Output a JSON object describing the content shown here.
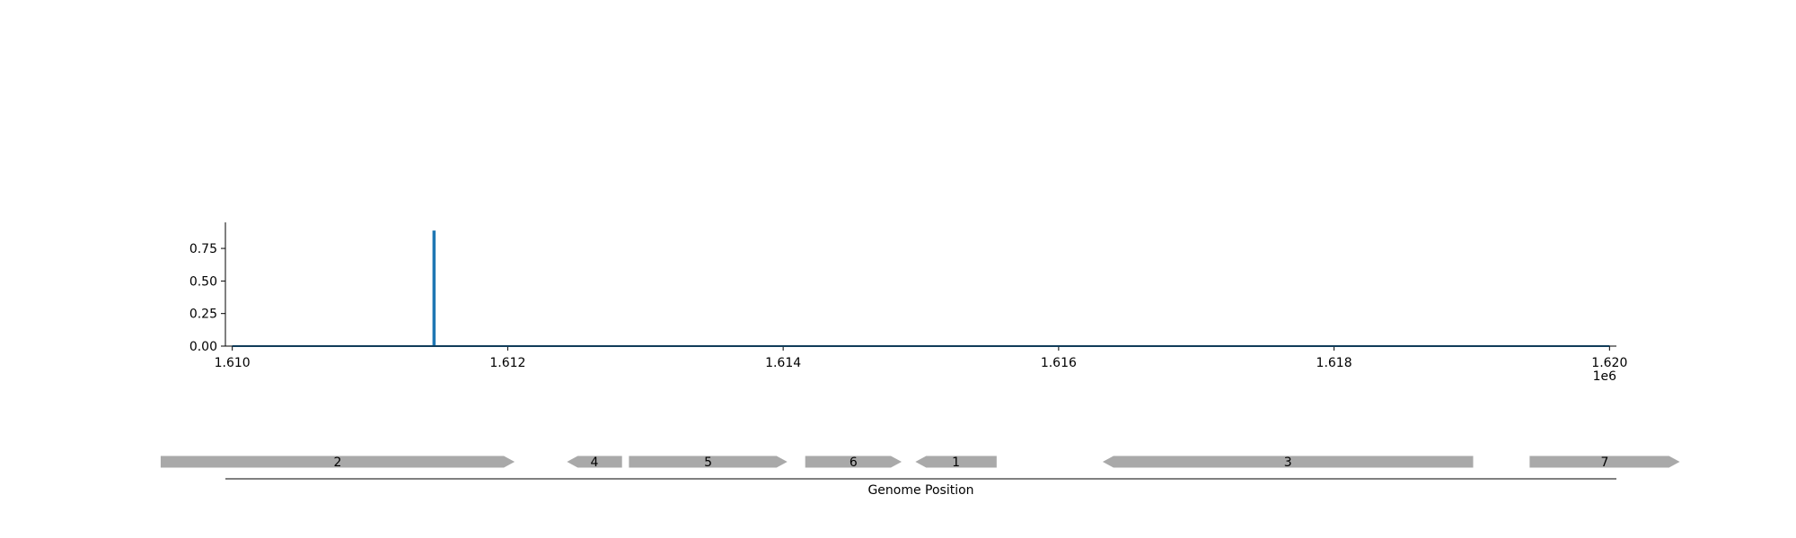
{
  "chart_data": [
    {
      "type": "line",
      "title": "",
      "xlabel": "",
      "ylabel": "",
      "x_offset_label": "1e6",
      "xlim": [
        1.60995,
        1.62005
      ],
      "ylim": [
        0,
        0.95
      ],
      "grid": false,
      "x_ticks": [
        1.61,
        1.612,
        1.614,
        1.616,
        1.618,
        1.62
      ],
      "x_tick_labels": [
        "1.610",
        "1.612",
        "1.614",
        "1.616",
        "1.618",
        "1.620"
      ],
      "y_ticks": [
        0.0,
        0.25,
        0.5,
        0.75
      ],
      "y_tick_labels": [
        "0.00",
        "0.25",
        "0.50",
        "0.75"
      ],
      "series": [
        {
          "color": "#1f77b4",
          "x": [
            1.61,
            1.61146,
            1.61146,
            1.61147,
            1.61147,
            1.62
          ],
          "y": [
            0,
            0,
            0.88,
            0.88,
            0,
            0
          ]
        }
      ]
    },
    {
      "type": "gene-track",
      "xlabel": "Genome Position",
      "color": "#a9a9a9",
      "genes": [
        {
          "label": "2",
          "start": 1.60948,
          "end": 1.61205,
          "strand": "+"
        },
        {
          "label": "4",
          "start": 1.61243,
          "end": 1.61283,
          "strand": "-"
        },
        {
          "label": "5",
          "start": 1.61288,
          "end": 1.61403,
          "strand": "+"
        },
        {
          "label": "6",
          "start": 1.61416,
          "end": 1.61486,
          "strand": "+"
        },
        {
          "label": "1",
          "start": 1.61496,
          "end": 1.61555,
          "strand": "-"
        },
        {
          "label": "3",
          "start": 1.61632,
          "end": 1.61901,
          "strand": "-"
        },
        {
          "label": "7",
          "start": 1.61942,
          "end": 1.62051,
          "strand": "+"
        }
      ]
    }
  ]
}
